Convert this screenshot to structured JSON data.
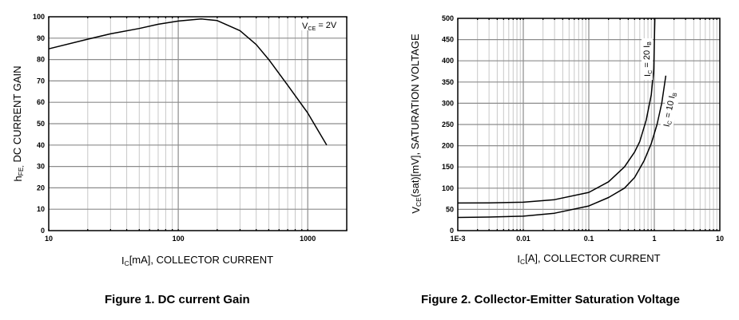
{
  "chart_data": [
    {
      "type": "line",
      "title": "Figure 1. DC current Gain",
      "xlabel": "I_C[mA], COLLECTOR CURRENT",
      "ylabel": "h_FE, DC CURRENT GAIN",
      "xscale": "log",
      "xlim": [
        10,
        2000
      ],
      "ylim": [
        0,
        100
      ],
      "x_ticks": [
        "10",
        "100",
        "1000"
      ],
      "y_ticks": [
        "0",
        "10",
        "20",
        "30",
        "40",
        "50",
        "60",
        "70",
        "80",
        "90",
        "100"
      ],
      "grid": true,
      "annotations": [
        "V_CE = 2V"
      ],
      "series": [
        {
          "name": "V_CE = 2V",
          "x": [
            10,
            20,
            30,
            50,
            70,
            100,
            150,
            200,
            300,
            400,
            500,
            700,
            1000,
            1400
          ],
          "y": [
            85,
            89.5,
            92,
            94.5,
            96.5,
            98,
            99,
            98.2,
            93.5,
            87,
            80,
            68,
            55,
            40
          ]
        }
      ]
    },
    {
      "type": "line",
      "title": "Figure 2. Collector-Emitter Saturation Voltage",
      "xlabel": "I_C[A], COLLECTOR CURRENT",
      "ylabel": "V_CE(sat)[mV], SATURATION VOLTAGE",
      "xscale": "log",
      "xlim": [
        0.001,
        10
      ],
      "ylim": [
        0,
        500
      ],
      "x_ticks": [
        "1E-3",
        "0.01",
        "0.1",
        "1",
        "10"
      ],
      "y_ticks": [
        "0",
        "50",
        "100",
        "150",
        "200",
        "250",
        "300",
        "350",
        "400",
        "450",
        "500"
      ],
      "grid": true,
      "series": [
        {
          "name": "I_C = 20 I_B",
          "x": [
            0.001,
            0.003,
            0.01,
            0.03,
            0.1,
            0.2,
            0.35,
            0.5,
            0.6,
            0.75,
            0.9,
            0.98,
            1.0,
            1.02
          ],
          "y": [
            65,
            65.5,
            67,
            73,
            90,
            115,
            150,
            185,
            210,
            260,
            320,
            380,
            440,
            500
          ]
        },
        {
          "name": "I_C = 10 I_B",
          "x": [
            0.001,
            0.003,
            0.01,
            0.03,
            0.1,
            0.2,
            0.35,
            0.5,
            0.7,
            0.9,
            1.1,
            1.3,
            1.5
          ],
          "y": [
            31,
            32,
            34,
            41,
            58,
            78,
            100,
            125,
            165,
            205,
            250,
            300,
            365
          ]
        }
      ]
    }
  ],
  "figure1": {
    "ylabel_main": "h",
    "ylabel_sub": "FE,",
    "ylabel_rest": " DC CURRENT GAIN",
    "xlabel_main": "I",
    "xlabel_sub": "C",
    "xlabel_rest": "[mA], COLLECTOR CURRENT",
    "annot_main": "V",
    "annot_sub": "CE",
    "annot_rest": " = 2V",
    "caption": "Figure 1. DC current Gain"
  },
  "figure2": {
    "ylabel_main": "V",
    "ylabel_sub": "CE",
    "ylabel_rest": "(sat)[mV], SATURATION VOLTAGE",
    "xlabel_main": "I",
    "xlabel_sub": "C",
    "xlabel_rest": "[A], COLLECTOR CURRENT",
    "label20_main": "I",
    "label20_sub": "C",
    "label20_rest": " = 20 I",
    "label20_sub2": "B",
    "label10_main": "I",
    "label10_sub": "C",
    "label10_rest": " = 10 I",
    "label10_sub2": "B",
    "caption": "Figure 2. Collector-Emitter Saturation Voltage"
  },
  "colors": {
    "grid_major": "#8c8c8c",
    "grid_minor": "#c8c8c8",
    "axis": "#000000",
    "curve": "#000000"
  }
}
